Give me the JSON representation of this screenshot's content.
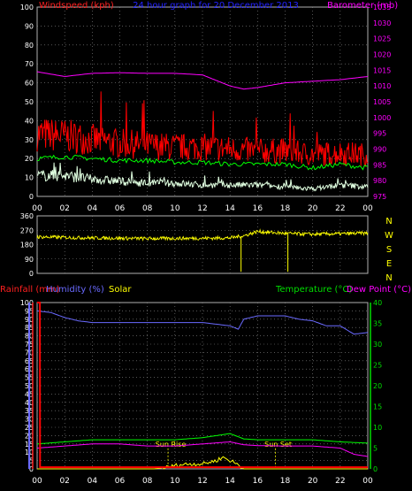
{
  "chart_data": [
    {
      "type": "line",
      "title": "24 hour graph for  20 December 2013",
      "title_color": "#2222ff",
      "left_axis": {
        "label": "Windspeed (kph)",
        "label_color": "#ff2020",
        "ylim": [
          0,
          100
        ],
        "ticks": [
          "0",
          "10",
          "20",
          "30",
          "40",
          "50",
          "60",
          "70",
          "80",
          "90",
          "100"
        ]
      },
      "right_axis": {
        "label": "Barometer (mb)",
        "label_color": "#ff00ff",
        "ylim": [
          975,
          1035
        ],
        "ticks": [
          "975",
          "980",
          "985",
          "990",
          "995",
          "1000",
          "1005",
          "1010",
          "1015",
          "1020",
          "1025",
          "1030",
          "1035"
        ]
      },
      "x_ticks": [
        "00",
        "02",
        "04",
        "06",
        "08",
        "10",
        "12",
        "14",
        "16",
        "18",
        "20",
        "22",
        "00"
      ],
      "grid": true,
      "series": [
        {
          "name": "Windspeed (kph)",
          "color": "#ff0000",
          "axis": "left",
          "style": "noisy-band",
          "x": [
            0,
            2,
            4,
            6,
            8,
            10,
            12,
            14,
            16,
            18,
            20,
            22,
            24
          ],
          "values": [
            33,
            32,
            30,
            28,
            27,
            26,
            26,
            25,
            24,
            24,
            22,
            23,
            22
          ]
        },
        {
          "color": "#00ff00",
          "axis": "left",
          "x": [
            0,
            2,
            4,
            6,
            8,
            10,
            12,
            14,
            16,
            18,
            20,
            22,
            24
          ],
          "values": [
            20,
            21,
            20,
            19,
            19,
            18,
            18,
            17,
            17,
            17,
            15,
            17,
            15
          ]
        },
        {
          "color": "#e0ffe0",
          "axis": "left",
          "style": "noisy-band",
          "x": [
            0,
            2,
            4,
            6,
            8,
            10,
            12,
            14,
            16,
            18,
            20,
            22,
            24
          ],
          "values": [
            11,
            11,
            9,
            8,
            7,
            7,
            6,
            6,
            6,
            5,
            4,
            6,
            5
          ]
        },
        {
          "name": "Barometer (mb)",
          "color": "#ff00ff",
          "axis": "right",
          "x": [
            0,
            2,
            4,
            6,
            8,
            10,
            12,
            14,
            15,
            16,
            18,
            20,
            22,
            24
          ],
          "values": [
            1014.5,
            1013,
            1014,
            1014.2,
            1014,
            1014,
            1013.5,
            1010,
            1009,
            1009.5,
            1011,
            1011.5,
            1012,
            1013
          ]
        }
      ]
    },
    {
      "type": "line",
      "left_axis": {
        "ylim": [
          0,
          360
        ],
        "ticks": [
          "0",
          "90",
          "180",
          "270",
          "360"
        ]
      },
      "compass": [
        "N",
        "W",
        "S",
        "E",
        "N"
      ],
      "x_ticks": [
        "00",
        "02",
        "04",
        "06",
        "08",
        "10",
        "12",
        "14",
        "16",
        "18",
        "20",
        "22",
        "00"
      ],
      "grid": true,
      "series": [
        {
          "color": "#ffff00",
          "style": "noisy-band",
          "x": [
            0,
            4,
            8,
            12,
            14,
            15,
            16,
            18,
            20,
            22,
            24
          ],
          "values": [
            228,
            222,
            218,
            220,
            222,
            235,
            262,
            250,
            245,
            248,
            252
          ]
        }
      ],
      "spikes": [
        {
          "x": 14.8,
          "value": 10
        },
        {
          "x": 18.2,
          "value": 10
        }
      ]
    },
    {
      "type": "line",
      "left_axis": {
        "labels": [
          {
            "text": "Rainfall (mm)",
            "color": "#ff2020"
          },
          {
            "text": "Humidity (%)",
            "color": "#6a6aff"
          },
          {
            "text": "Solar",
            "color": "#ffff00"
          }
        ],
        "ylim": [
          0,
          100
        ],
        "ticks": [
          "0",
          "5",
          "10",
          "15",
          "20",
          "25",
          "30",
          "35",
          "40",
          "45",
          "50",
          "55",
          "60",
          "65",
          "70",
          "75",
          "80",
          "85",
          "90",
          "95",
          "100"
        ],
        "tick_colors": [
          "#ff2020",
          "#6a6aff"
        ]
      },
      "right_axis": {
        "labels": [
          {
            "text": "Temperature (°C)",
            "color": "#00dd00"
          },
          {
            "text": "Dew Point (°C)",
            "color": "#ff00ff"
          }
        ],
        "ylim": [
          0,
          40
        ],
        "ticks": [
          "0",
          "5",
          "10",
          "15",
          "20",
          "25",
          "30",
          "35",
          "40"
        ]
      },
      "x_ticks": [
        "00",
        "02",
        "04",
        "06",
        "08",
        "10",
        "12",
        "14",
        "16",
        "18",
        "20",
        "22",
        "00"
      ],
      "grid": true,
      "annotations": [
        {
          "text": "Sun Rise",
          "x": 9.5,
          "y": 15
        },
        {
          "text": "Sun Set",
          "x": 17.3,
          "y": 15
        }
      ],
      "series": [
        {
          "name": "Humidity (%)",
          "color": "#6a6aff",
          "axis": "left",
          "x": [
            0,
            1,
            2,
            3,
            4,
            6,
            8,
            10,
            12,
            13,
            14,
            14.6,
            15,
            16,
            18,
            19,
            20,
            21,
            22,
            23,
            24
          ],
          "values": [
            95,
            94,
            91,
            89,
            88,
            88,
            88,
            88,
            88,
            87,
            86,
            84,
            90,
            92,
            92,
            90,
            89,
            86,
            86,
            81,
            82
          ]
        },
        {
          "name": "Temperature (°C)",
          "color": "#00ff00",
          "axis": "right",
          "x": [
            0,
            2,
            4,
            6,
            8,
            10,
            12,
            14,
            15,
            16,
            18,
            20,
            22,
            24
          ],
          "values": [
            6,
            6.5,
            7,
            7,
            7,
            7,
            7.5,
            8.5,
            7.2,
            7,
            7,
            7,
            6.5,
            6.2
          ]
        },
        {
          "name": "Dew Point (°C)",
          "color": "#ff00ff",
          "axis": "right",
          "x": [
            0,
            2,
            4,
            6,
            8,
            10,
            12,
            14,
            15,
            16,
            18,
            20,
            22,
            23,
            24
          ],
          "values": [
            5,
            5.5,
            6,
            6,
            5.5,
            5.5,
            6,
            6.5,
            5.8,
            5.6,
            5.5,
            5.5,
            5,
            3.5,
            3
          ]
        },
        {
          "name": "Solar",
          "color": "#ffff00",
          "axis": "left",
          "x": [
            0,
            8.5,
            9.5,
            10,
            11,
            12,
            13,
            13.5,
            14,
            14.5,
            15,
            24
          ],
          "values": [
            0,
            0,
            1,
            2,
            3,
            3,
            5,
            7,
            5,
            3,
            0,
            0
          ]
        },
        {
          "name": "Rainfall (mm)",
          "color": "#ff0000",
          "axis": "left",
          "x": [
            0,
            0.2,
            0.21,
            24
          ],
          "values": [
            100,
            100,
            1,
            1
          ]
        }
      ]
    }
  ]
}
